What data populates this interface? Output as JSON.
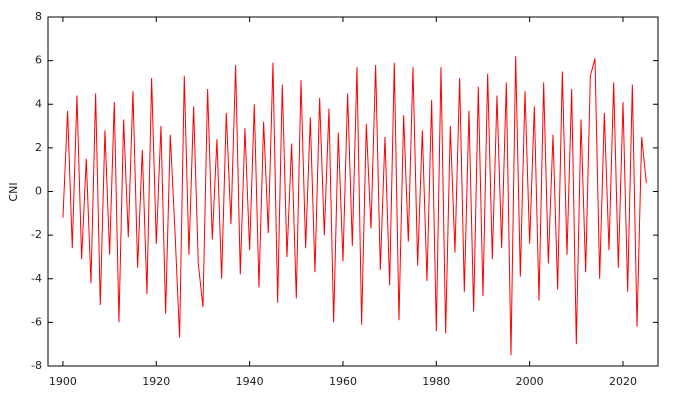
{
  "chart_data": {
    "type": "line",
    "ylabel": "CNI",
    "x": [
      1900,
      1901,
      1902,
      1903,
      1904,
      1905,
      1906,
      1907,
      1908,
      1909,
      1910,
      1911,
      1912,
      1913,
      1914,
      1915,
      1916,
      1917,
      1918,
      1919,
      1920,
      1921,
      1922,
      1923,
      1924,
      1925,
      1926,
      1927,
      1928,
      1929,
      1930,
      1931,
      1932,
      1933,
      1934,
      1935,
      1936,
      1937,
      1938,
      1939,
      1940,
      1941,
      1942,
      1943,
      1944,
      1945,
      1946,
      1947,
      1948,
      1949,
      1950,
      1951,
      1952,
      1953,
      1954,
      1955,
      1956,
      1957,
      1958,
      1959,
      1960,
      1961,
      1962,
      1963,
      1964,
      1965,
      1966,
      1967,
      1968,
      1969,
      1970,
      1971,
      1972,
      1973,
      1974,
      1975,
      1976,
      1977,
      1978,
      1979,
      1980,
      1981,
      1982,
      1983,
      1984,
      1985,
      1986,
      1987,
      1988,
      1989,
      1990,
      1991,
      1992,
      1993,
      1994,
      1995,
      1996,
      1997,
      1998,
      1999,
      2000,
      2001,
      2002,
      2003,
      2004,
      2005,
      2006,
      2007,
      2008,
      2009,
      2010,
      2011,
      2012,
      2013,
      2014,
      2015,
      2016,
      2017,
      2018,
      2019,
      2020,
      2021,
      2022,
      2023,
      2024,
      2025
    ],
    "series": [
      {
        "color": "#ff0000",
        "values": [
          -1.2,
          3.7,
          -2.6,
          4.4,
          -3.1,
          1.5,
          -4.2,
          4.5,
          -5.2,
          2.8,
          -2.9,
          4.1,
          -6.0,
          3.3,
          -2.1,
          4.6,
          -3.5,
          1.9,
          -4.7,
          5.2,
          -2.4,
          3.0,
          -5.6,
          2.6,
          -1.8,
          -6.7,
          5.3,
          -2.9,
          3.9,
          -3.3,
          -5.3,
          4.7,
          -2.2,
          2.4,
          -4.0,
          3.6,
          -1.5,
          5.8,
          -3.8,
          2.9,
          -2.7,
          4.0,
          -4.4,
          3.2,
          -1.9,
          5.9,
          -5.1,
          4.9,
          -3.0,
          2.2,
          -4.9,
          5.1,
          -2.6,
          3.4,
          -3.7,
          4.3,
          -2.0,
          3.8,
          -6.0,
          2.7,
          -3.2,
          4.5,
          -2.5,
          5.7,
          -6.1,
          3.1,
          -1.7,
          5.8,
          -3.6,
          2.5,
          -4.3,
          5.9,
          -5.9,
          3.5,
          -2.3,
          5.7,
          -3.4,
          2.8,
          -4.1,
          4.2,
          -6.4,
          5.7,
          -6.5,
          3.0,
          -2.8,
          5.2,
          -4.6,
          3.7,
          -5.5,
          4.8,
          -4.8,
          5.4,
          -3.1,
          4.4,
          -2.6,
          5.0,
          -7.5,
          6.2,
          -3.9,
          4.6,
          -2.4,
          3.9,
          -5.0,
          5.0,
          -3.3,
          2.6,
          -4.5,
          5.5,
          -2.9,
          4.7,
          -7.0,
          3.3,
          -3.7,
          5.3,
          6.1,
          -4.0,
          3.6,
          -2.7,
          5.0,
          -3.5,
          4.1,
          -4.6,
          4.9,
          -6.2,
          2.5,
          0.4
        ]
      }
    ],
    "xlim": [
      1896.8,
      2027.5
    ],
    "xticks": [
      1900,
      1920,
      1940,
      1960,
      1980,
      2000,
      2020
    ],
    "ylim": [
      -8,
      8
    ],
    "yticks": [
      -8,
      -6,
      -4,
      -2,
      0,
      2,
      4,
      6,
      8
    ]
  }
}
